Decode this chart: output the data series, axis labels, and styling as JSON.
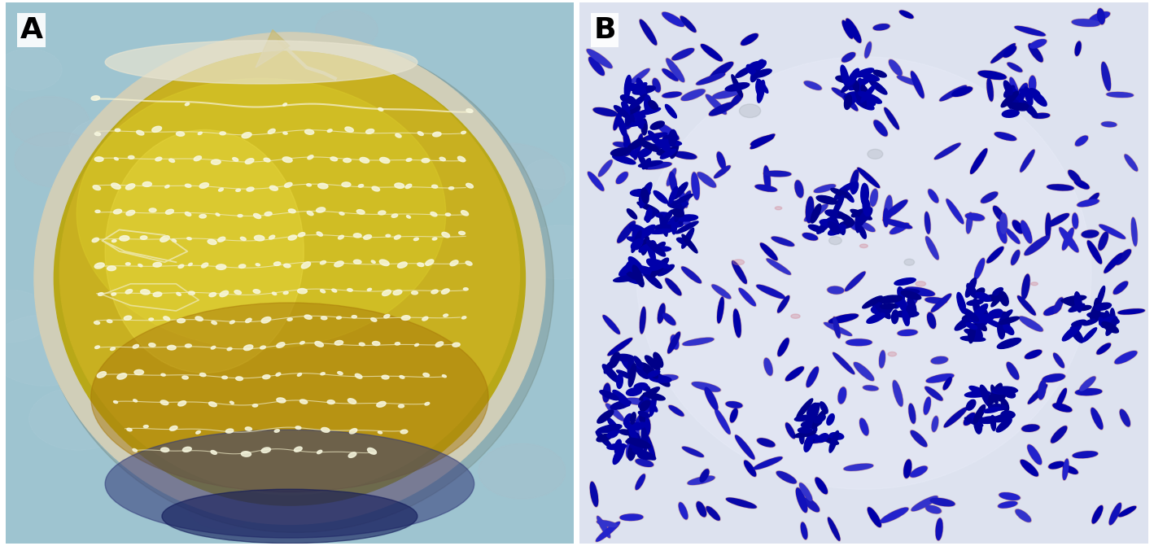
{
  "panel_a_label": "A",
  "panel_b_label": "B",
  "label_fontsize": 26,
  "label_fontweight": "bold",
  "label_color": "#000000",
  "panel_a_bg": "#9ec4d0",
  "panel_b_bg": "#dde2ef",
  "agar_main": "#c8b020",
  "agar_light": "#ddc830",
  "agar_highlight": "#e8d840",
  "dish_rim_color": "#d8d8c0",
  "dish_outer_color": "#c8c8b0",
  "streak_color": "#f0eecc",
  "colony_color": "#f8f8e8",
  "bacteria_thin_color": "#2222bb",
  "bacteria_cluster_color": "#000099",
  "background_outer": "#b8d4dc",
  "dish_bottom_color": "#302870",
  "micro_bg": "#dde2ef",
  "fig_bg": "#ffffff"
}
